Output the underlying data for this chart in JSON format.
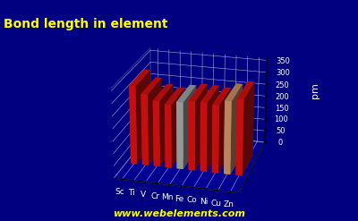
{
  "elements": [
    "Sc",
    "Ti",
    "V",
    "Cr",
    "Mn",
    "Fe",
    "Co",
    "Ni",
    "Cu",
    "Zn"
  ],
  "values": [
    320,
    291,
    268,
    258,
    273,
    282,
    281,
    276,
    296,
    309
  ],
  "bar_colors": [
    "#dd1111",
    "#dd1111",
    "#dd1111",
    "#dd1111",
    "#aaaaaa",
    "#dd1111",
    "#dd1111",
    "#dd1111",
    "#d4956a",
    "#dd1111"
  ],
  "title": "Bond length in element",
  "ylabel": "pm",
  "ylim": [
    0,
    360
  ],
  "yticks": [
    0,
    50,
    100,
    150,
    200,
    250,
    300,
    350
  ],
  "bg_color": "#000080",
  "title_color": "#ffff00",
  "title_fontsize": 10,
  "watermark": "www.webelements.com",
  "watermark_color": "#ffff00",
  "elev": 22,
  "azim": -75,
  "bar_width": 0.55,
  "bar_depth": 0.4
}
